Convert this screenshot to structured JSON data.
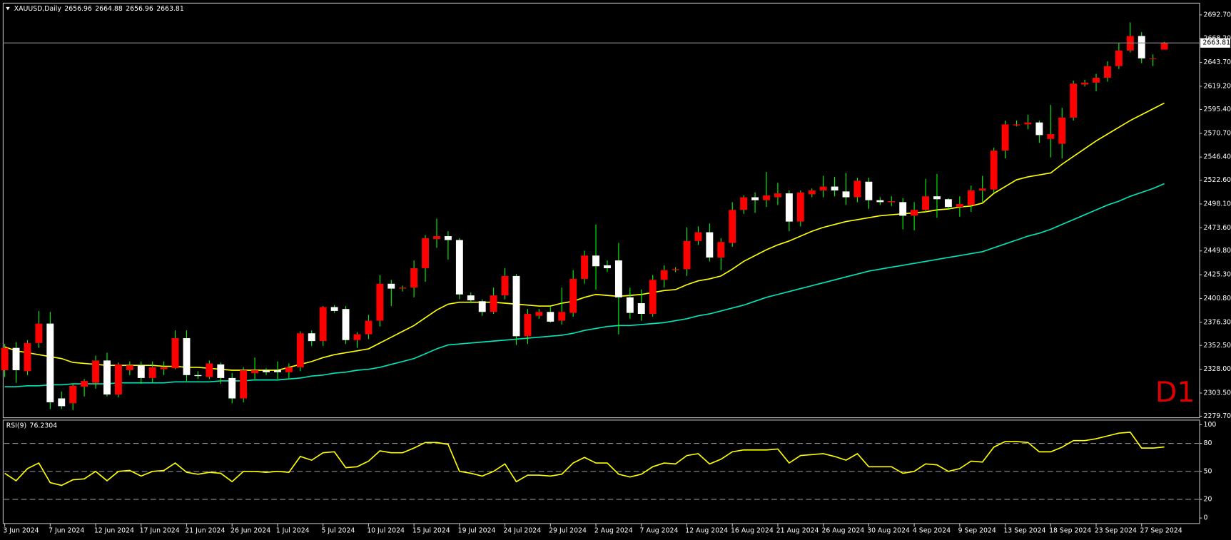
{
  "chart_data": [
    {
      "type": "candlestick",
      "title": "XAUUSD,Daily",
      "timeframe_label": "D1",
      "categories": [
        "3 Jun 2024",
        null,
        null,
        null,
        "7 Jun 2024",
        null,
        null,
        null,
        "12 Jun 2024",
        null,
        null,
        null,
        "17 Jun 2024",
        null,
        null,
        null,
        "21 Jun 2024",
        null,
        null,
        null,
        "26 Jun 2024",
        null,
        null,
        null,
        "1 Jul 2024",
        null,
        null,
        null,
        "5 Jul 2024",
        null,
        null,
        null,
        "10 Jul 2024",
        null,
        null,
        null,
        "15 Jul 2024",
        null,
        null,
        null,
        "19 Jul 2024",
        null,
        null,
        null,
        "24 Jul 2024",
        null,
        null,
        null,
        "29 Jul 2024",
        null,
        null,
        null,
        "2 Aug 2024",
        null,
        null,
        null,
        "7 Aug 2024",
        null,
        null,
        null,
        "12 Aug 2024",
        null,
        null,
        null,
        "16 Aug 2024",
        null,
        null,
        null,
        "21 Aug 2024",
        null,
        null,
        null,
        "26 Aug 2024",
        null,
        null,
        null,
        "30 Aug 2024",
        null,
        null,
        null,
        "4 Sep 2024",
        null,
        null,
        null,
        "9 Sep 2024",
        null,
        null,
        null,
        "13 Sep 2024",
        null,
        null,
        null,
        "18 Sep 2024",
        null,
        null,
        null,
        "23 Sep 2024",
        null,
        null,
        null,
        "27 Sep 2024",
        null,
        null
      ],
      "open": [
        2327,
        2350,
        2326,
        2355,
        2375,
        2298,
        2293,
        2310,
        2314,
        2337,
        2302,
        2327,
        2332,
        2319,
        2328,
        2329,
        2360,
        2322,
        2320,
        2333,
        2319,
        2298,
        2324,
        2327,
        2327,
        2325,
        2330,
        2365,
        2357,
        2392,
        2390,
        2358,
        2364,
        2378,
        2416,
        2411,
        2412,
        2432,
        2462,
        2465,
        2461,
        2404,
        2398,
        2387,
        2404,
        2424,
        2362,
        2383,
        2387,
        2378,
        2386,
        2421,
        2445,
        2435,
        2440,
        2402,
        2396,
        2385,
        2420,
        2430,
        2431,
        2460,
        2469,
        2443,
        2458,
        2492,
        2505,
        2502,
        2505,
        2509,
        2480,
        2508,
        2512,
        2516,
        2511,
        2505,
        2521,
        2502,
        2500,
        2500,
        2486,
        2492,
        2506,
        2503,
        2495,
        2497,
        2512,
        2513,
        2553,
        2579,
        2580,
        2582,
        2565,
        2560,
        2587,
        2621,
        2623,
        2628,
        2640,
        2656,
        2671,
        2648,
        2656.96
      ],
      "high": [
        2354,
        2356,
        2358,
        2388,
        2387,
        2305,
        2313,
        2318,
        2342,
        2345,
        2335,
        2336,
        2336,
        2336,
        2336,
        2368,
        2368,
        2326,
        2337,
        2335,
        2324,
        2330,
        2340,
        2329,
        2336,
        2334,
        2367,
        2368,
        2393,
        2394,
        2393,
        2366,
        2384,
        2425,
        2420,
        2414,
        2440,
        2466,
        2483,
        2470,
        2463,
        2407,
        2400,
        2412,
        2432,
        2426,
        2390,
        2390,
        2392,
        2412,
        2430,
        2450,
        2477,
        2440,
        2458,
        2412,
        2410,
        2425,
        2435,
        2433,
        2474,
        2475,
        2478,
        2463,
        2500,
        2507,
        2510,
        2531,
        2520,
        2512,
        2512,
        2514,
        2527,
        2526,
        2530,
        2525,
        2525,
        2505,
        2506,
        2504,
        2500,
        2524,
        2529,
        2504,
        2506,
        2517,
        2527,
        2556,
        2584,
        2584,
        2590,
        2584,
        2600,
        2597,
        2625,
        2626,
        2632,
        2645,
        2664,
        2685,
        2675,
        2652,
        2664.88
      ],
      "low": [
        2320,
        2314,
        2322,
        2350,
        2287,
        2287,
        2286,
        2300,
        2308,
        2300,
        2299,
        2322,
        2313,
        2314,
        2322,
        2328,
        2316,
        2318,
        2318,
        2313,
        2293,
        2294,
        2318,
        2322,
        2318,
        2319,
        2326,
        2352,
        2352,
        2386,
        2354,
        2350,
        2359,
        2372,
        2393,
        2408,
        2402,
        2418,
        2453,
        2441,
        2400,
        2396,
        2383,
        2385,
        2400,
        2353,
        2354,
        2380,
        2376,
        2374,
        2382,
        2416,
        2410,
        2428,
        2364,
        2380,
        2378,
        2382,
        2412,
        2428,
        2424,
        2456,
        2439,
        2430,
        2454,
        2488,
        2489,
        2495,
        2497,
        2470,
        2475,
        2505,
        2505,
        2506,
        2497,
        2500,
        2493,
        2497,
        2496,
        2472,
        2471,
        2490,
        2484,
        2492,
        2485,
        2490,
        2500,
        2510,
        2545,
        2578,
        2575,
        2561,
        2546,
        2545,
        2584,
        2619,
        2614,
        2624,
        2637,
        2654,
        2643,
        2640,
        2656.96
      ],
      "close": [
        2350,
        2327,
        2355,
        2375,
        2294,
        2290,
        2311,
        2316,
        2337,
        2302,
        2333,
        2332,
        2319,
        2330,
        2330,
        2360,
        2322,
        2321,
        2334,
        2319,
        2298,
        2327,
        2327,
        2325,
        2325,
        2330,
        2365,
        2357,
        2392,
        2388,
        2358,
        2364,
        2378,
        2416,
        2411,
        2412,
        2432,
        2463,
        2465,
        2461,
        2405,
        2399,
        2387,
        2404,
        2424,
        2362,
        2385,
        2387,
        2377,
        2387,
        2421,
        2445,
        2434,
        2432,
        2402,
        2386,
        2385,
        2420,
        2430,
        2431,
        2460,
        2469,
        2443,
        2459,
        2492,
        2505,
        2502,
        2507,
        2509,
        2480,
        2510,
        2512,
        2516,
        2512,
        2505,
        2522,
        2502,
        2500,
        2501,
        2486,
        2492,
        2506,
        2503,
        2495,
        2498,
        2512,
        2514,
        2553,
        2580,
        2580,
        2582,
        2569,
        2570,
        2587,
        2622,
        2623,
        2628,
        2640,
        2656,
        2671,
        2648,
        2648,
        2663.81
      ],
      "up_color": "#ff0000",
      "down_color": "#ffffff",
      "wick_color": "#00ff00",
      "price_line_color": "#8c8c8c",
      "overlays": [
        {
          "color": "#ffff00",
          "values": [
            2351,
            2347,
            2345,
            2343,
            2341,
            2339,
            2335,
            2334,
            2333,
            2332,
            2332,
            2332,
            2332,
            2332,
            2331,
            2331,
            2330,
            2330,
            2329,
            2328,
            2327,
            2327,
            2327,
            2327,
            2327,
            2330,
            2333,
            2336,
            2340,
            2343,
            2345,
            2347,
            2349,
            2355,
            2361,
            2367,
            2373,
            2381,
            2389,
            2395,
            2397,
            2397,
            2397,
            2397,
            2396,
            2395,
            2394,
            2393,
            2393,
            2396,
            2398,
            2402,
            2405,
            2404,
            2403,
            2404,
            2405,
            2407,
            2409,
            2410,
            2415,
            2419,
            2421,
            2424,
            2431,
            2439,
            2445,
            2451,
            2456,
            2460,
            2465,
            2470,
            2474,
            2477,
            2480,
            2482,
            2484,
            2486,
            2487,
            2488,
            2489,
            2490,
            2492,
            2493,
            2495,
            2496,
            2499,
            2509,
            2516,
            2523,
            2526,
            2528,
            2530,
            2539,
            2547,
            2555,
            2563,
            2570,
            2577,
            2584,
            2590,
            2596,
            2602
          ]
        },
        {
          "color": "#00e6b8",
          "values": [
            2310,
            2310,
            2311,
            2311,
            2312,
            2312,
            2313,
            2313,
            2313,
            2313,
            2314,
            2314,
            2314,
            2314,
            2314,
            2315,
            2315,
            2315,
            2315,
            2316,
            2316,
            2316,
            2317,
            2317,
            2317,
            2318,
            2319,
            2321,
            2322,
            2324,
            2325,
            2327,
            2328,
            2330,
            2333,
            2336,
            2339,
            2344,
            2349,
            2353,
            2354,
            2355,
            2356,
            2357,
            2358,
            2359,
            2360,
            2361,
            2362,
            2363,
            2365,
            2368,
            2370,
            2372,
            2373,
            2373,
            2374,
            2375,
            2376,
            2378,
            2380,
            2383,
            2385,
            2388,
            2391,
            2394,
            2398,
            2402,
            2405,
            2408,
            2411,
            2414,
            2417,
            2420,
            2423,
            2426,
            2429,
            2431,
            2433,
            2435,
            2437,
            2439,
            2441,
            2443,
            2445,
            2447,
            2449,
            2453,
            2457,
            2461,
            2465,
            2468,
            2472,
            2477,
            2482,
            2487,
            2492,
            2497,
            2501,
            2506,
            2510,
            2514,
            2519
          ]
        }
      ],
      "ylim": [
        2278.1,
        2704.8
      ],
      "yticks": [
        {
          "value": 2692.7,
          "label": "2692.70"
        },
        {
          "value": 2668.2,
          "label": "2668.20"
        },
        {
          "value": 2643.7,
          "label": "2643.70"
        },
        {
          "value": 2619.2,
          "label": "2619.20"
        },
        {
          "value": 2595.4,
          "label": "2595.40"
        },
        {
          "value": 2570.7,
          "label": "2570.70"
        },
        {
          "value": 2546.4,
          "label": "2546.40"
        },
        {
          "value": 2522.6,
          "label": "2522.60"
        },
        {
          "value": 2498.1,
          "label": "2498.10"
        },
        {
          "value": 2473.6,
          "label": "2473.60"
        },
        {
          "value": 2449.8,
          "label": "2449.80"
        },
        {
          "value": 2425.3,
          "label": "2425.30"
        },
        {
          "value": 2400.8,
          "label": "2400.80"
        },
        {
          "value": 2376.3,
          "label": "2376.30"
        },
        {
          "value": 2352.5,
          "label": "2352.50"
        },
        {
          "value": 2328.0,
          "label": "2328.00"
        },
        {
          "value": 2303.5,
          "label": "2303.50"
        },
        {
          "value": 2279.7,
          "label": "2279.70"
        }
      ],
      "grid": false
    },
    {
      "type": "line",
      "title": "RSI(9)",
      "color": "#ffff00",
      "values": [
        48,
        40,
        53,
        59,
        38,
        35,
        41,
        42,
        50,
        40,
        50,
        51,
        45,
        50,
        51,
        59,
        49,
        47,
        49,
        48,
        39,
        50,
        50,
        49,
        50,
        49,
        66,
        62,
        70,
        71,
        54,
        55,
        61,
        72,
        70,
        70,
        75,
        81,
        81,
        79,
        50,
        48,
        45,
        50,
        58,
        39,
        46,
        46,
        45,
        47,
        59,
        65,
        59,
        59,
        47,
        44,
        47,
        55,
        59,
        58,
        67,
        69,
        58,
        63,
        71,
        73,
        73,
        73,
        74,
        59,
        67,
        68,
        69,
        66,
        62,
        69,
        55,
        55,
        55,
        48,
        50,
        58,
        57,
        50,
        53,
        61,
        60,
        76,
        82,
        82,
        81,
        71,
        71,
        76,
        83,
        83,
        85,
        88,
        91,
        92,
        75,
        75,
        76.2304
      ],
      "ylim": [
        -5.9,
        105
      ],
      "yticks": [
        100,
        80,
        50,
        20,
        0
      ],
      "levels": [
        80,
        50,
        20
      ],
      "level_color": "#8c8c8c",
      "grid": false
    }
  ]
}
